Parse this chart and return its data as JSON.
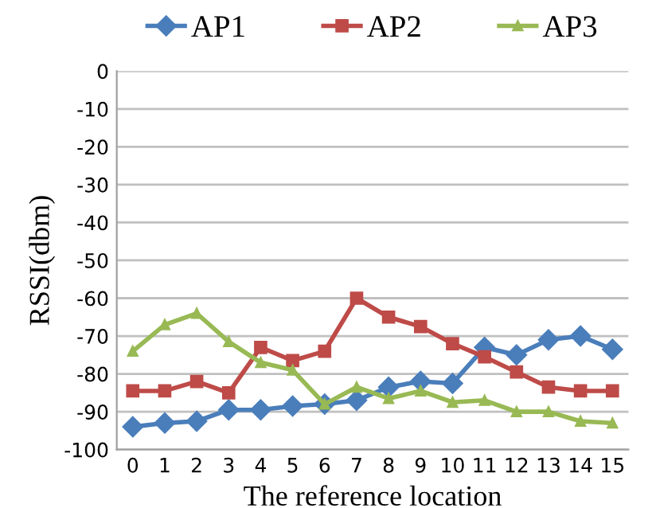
{
  "chart_data": {
    "type": "line",
    "xlabel": "The reference location",
    "ylabel": "RSSI(dbm)",
    "categories": [
      "0",
      "1",
      "2",
      "3",
      "4",
      "5",
      "6",
      "7",
      "8",
      "9",
      "10",
      "11",
      "12",
      "13",
      "14",
      "15"
    ],
    "series": [
      {
        "name": "AP1",
        "color": "#4a7ebb",
        "marker": "diamond",
        "values": [
          -94,
          -93,
          -92.5,
          -89.5,
          -89.5,
          -88.5,
          -88,
          -87,
          -83.5,
          -82,
          -82.5,
          -73,
          -75,
          -71,
          -70,
          -73.5
        ]
      },
      {
        "name": "AP2",
        "color": "#be4b48",
        "marker": "square",
        "values": [
          -84.5,
          -84.5,
          -82,
          -85,
          -73,
          -76.5,
          -74,
          -60,
          -65,
          -67.5,
          -72,
          -75.5,
          -79.5,
          -83.5,
          -84.5,
          -84.5
        ]
      },
      {
        "name": "AP3",
        "color": "#98b954",
        "marker": "triangle",
        "values": [
          -74,
          -67,
          -64,
          -71.5,
          -77,
          -79,
          -88,
          -83.5,
          -86.5,
          -84.5,
          -87.5,
          -87,
          -90,
          -90,
          -92.5,
          -93
        ]
      }
    ],
    "ylim": [
      -100,
      0
    ],
    "yticks": [
      -100,
      -90,
      -80,
      -70,
      -60,
      -50,
      -40,
      -30,
      -20,
      -10,
      0
    ],
    "grid": "y",
    "legend": "top",
    "line_style": "solid"
  }
}
